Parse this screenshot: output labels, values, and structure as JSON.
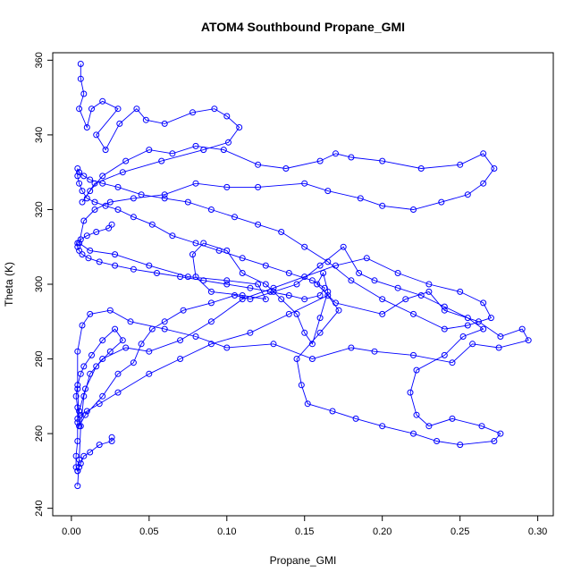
{
  "chart_data": {
    "type": "scatter",
    "title": "ATOM4 Southbound Propane_GMI",
    "xlabel": "Propane_GMI",
    "ylabel": "Theta (K)",
    "xlim": [
      -0.012,
      0.31
    ],
    "ylim": [
      238,
      362
    ],
    "x_ticks": [
      0.0,
      0.05,
      0.1,
      0.15,
      0.2,
      0.25,
      0.3
    ],
    "x_tick_labels": [
      "0.00",
      "0.05",
      "0.10",
      "0.15",
      "0.20",
      "0.25",
      "0.30"
    ],
    "y_ticks": [
      240,
      260,
      280,
      300,
      320,
      340,
      360
    ],
    "y_tick_labels": [
      "240",
      "260",
      "280",
      "300",
      "320",
      "340",
      "360"
    ],
    "color": "#0000ff",
    "marker": "open-circle",
    "connected": true,
    "grid": false,
    "legend": "none",
    "series": [
      {
        "x": [
          0.006,
          0.006,
          0.008,
          0.005,
          0.01,
          0.013,
          0.02,
          0.03,
          0.016,
          0.022,
          0.031,
          0.042,
          0.048,
          0.06,
          0.078,
          0.092,
          0.1,
          0.108,
          0.101,
          0.085,
          0.058,
          0.033,
          0.015,
          0.007,
          0.012,
          0.02,
          0.035,
          0.05,
          0.065,
          0.08,
          0.098,
          0.12,
          0.138,
          0.16,
          0.17,
          0.18,
          0.2,
          0.225,
          0.25,
          0.265,
          0.272,
          0.265,
          0.255,
          0.238,
          0.22,
          0.2,
          0.186,
          0.165,
          0.15,
          0.12,
          0.1,
          0.08,
          0.06,
          0.04,
          0.025,
          0.015,
          0.008,
          0.005,
          0.012,
          0.028,
          0.05,
          0.075,
          0.1,
          0.12,
          0.125,
          0.11,
          0.09,
          0.08,
          0.078,
          0.085,
          0.1,
          0.11,
          0.125,
          0.135,
          0.145,
          0.15,
          0.155,
          0.16,
          0.165,
          0.162,
          0.158,
          0.17,
          0.2,
          0.215,
          0.23,
          0.24,
          0.262,
          0.276,
          0.29,
          0.294,
          0.275,
          0.258,
          0.245,
          0.22,
          0.195,
          0.18,
          0.155,
          0.13,
          0.1,
          0.08,
          0.06,
          0.038,
          0.025,
          0.012,
          0.007,
          0.004,
          0.004,
          0.005,
          0.009,
          0.02,
          0.03,
          0.04,
          0.045,
          0.052,
          0.06,
          0.072,
          0.09,
          0.105,
          0.115,
          0.13,
          0.145,
          0.16,
          0.175,
          0.185,
          0.195,
          0.21,
          0.225,
          0.24,
          0.255,
          0.265,
          0.252,
          0.24,
          0.222,
          0.218,
          0.222,
          0.23,
          0.245,
          0.264,
          0.276,
          0.272,
          0.25,
          0.235,
          0.22,
          0.2,
          0.183,
          0.168,
          0.152,
          0.148,
          0.145,
          0.16,
          0.172,
          0.165,
          0.14,
          0.115,
          0.09,
          0.07,
          0.05,
          0.03,
          0.018,
          0.01,
          0.006,
          0.004,
          0.005,
          0.009,
          0.016,
          0.025,
          0.033,
          0.028,
          0.02,
          0.013,
          0.008,
          0.006,
          0.004,
          0.003,
          0.004,
          0.004,
          0.004,
          0.003,
          0.003,
          0.004,
          0.004,
          0.005,
          0.006,
          0.008,
          0.012,
          0.018,
          0.026,
          0.026
        ],
        "y": [
          359,
          355,
          351,
          347,
          342,
          347,
          349,
          347,
          340,
          336,
          343,
          347,
          344,
          343,
          346,
          347,
          345,
          342,
          338,
          336,
          333,
          330,
          327,
          322,
          325,
          329,
          333,
          336,
          335,
          337,
          336,
          332,
          331,
          333,
          335,
          334,
          333,
          331,
          332,
          335,
          331,
          327,
          324,
          322,
          320,
          321,
          323,
          325,
          327,
          326,
          326,
          327,
          324,
          323,
          322,
          320,
          317,
          311,
          309,
          308,
          305,
          302,
          301,
          300,
          296,
          297,
          298,
          302,
          308,
          311,
          309,
          303,
          300,
          296,
          292,
          287,
          284,
          291,
          298,
          303,
          300,
          295,
          292,
          296,
          298,
          293,
          290,
          286,
          288,
          285,
          283,
          284,
          279,
          281,
          282,
          283,
          280,
          284,
          283,
          286,
          288,
          290,
          293,
          292,
          289,
          282,
          272,
          262,
          265,
          270,
          276,
          279,
          284,
          288,
          290,
          293,
          295,
          297,
          296,
          298,
          300,
          305,
          310,
          303,
          301,
          299,
          297,
          294,
          291,
          288,
          286,
          281,
          277,
          271,
          265,
          262,
          264,
          262,
          260,
          258,
          257,
          258,
          260,
          262,
          264,
          266,
          268,
          273,
          280,
          287,
          293,
          297,
          292,
          287,
          284,
          280,
          276,
          271,
          268,
          266,
          265,
          264,
          266,
          272,
          278,
          282,
          285,
          288,
          285,
          281,
          278,
          276,
          273,
          270,
          267,
          263,
          258,
          254,
          251,
          250,
          250,
          251,
          252,
          254,
          255,
          257,
          258,
          259
        ]
      },
      {
        "x": [
          0.004,
          0.005,
          0.006,
          0.008,
          0.012,
          0.02,
          0.035,
          0.05,
          0.07,
          0.09,
          0.11,
          0.13,
          0.15,
          0.17,
          0.19,
          0.21,
          0.23,
          0.25,
          0.265,
          0.27,
          0.255,
          0.24,
          0.22,
          0.2,
          0.18,
          0.165,
          0.15,
          0.135,
          0.12,
          0.105,
          0.09,
          0.075,
          0.06,
          0.045,
          0.03,
          0.02,
          0.012,
          0.008,
          0.005,
          0.004,
          0.004,
          0.005,
          0.007,
          0.01,
          0.015,
          0.022,
          0.03,
          0.04,
          0.052,
          0.065,
          0.08,
          0.095,
          0.11,
          0.125,
          0.14,
          0.155,
          0.163,
          0.16,
          0.15,
          0.14,
          0.128,
          0.115,
          0.1,
          0.085,
          0.07,
          0.055,
          0.04,
          0.028,
          0.018,
          0.011,
          0.007,
          0.005,
          0.004,
          0.004,
          0.006,
          0.01,
          0.016,
          0.024,
          0.026
        ],
        "y": [
          246,
          253,
          262,
          270,
          276,
          280,
          283,
          282,
          285,
          290,
          296,
          299,
          302,
          305,
          307,
          303,
          300,
          298,
          295,
          291,
          289,
          288,
          292,
          296,
          301,
          306,
          310,
          314,
          316,
          318,
          320,
          322,
          323,
          324,
          326,
          327,
          328,
          329,
          330,
          331,
          329,
          327,
          325,
          323,
          322,
          321,
          320,
          318,
          316,
          313,
          311,
          309,
          307,
          305,
          303,
          301,
          299,
          297,
          296,
          297,
          298,
          299,
          300,
          301,
          302,
          303,
          304,
          305,
          306,
          307,
          308,
          309,
          310,
          311,
          312,
          313,
          314,
          315,
          316
        ]
      }
    ]
  }
}
